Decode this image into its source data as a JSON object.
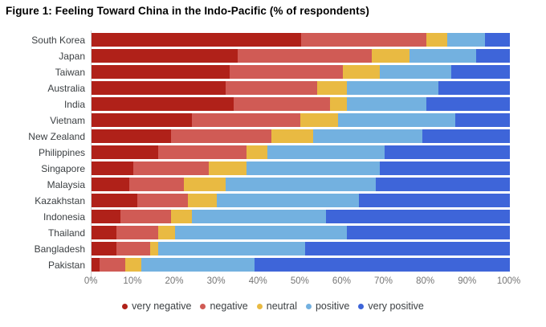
{
  "title": "Figure 1: Feeling Toward China in the Indo-Pacific (% of respondents)",
  "chart_data": {
    "type": "bar",
    "subtype": "horizontal_stacked_100",
    "title": "Figure 1: Feeling Toward China in the Indo-Pacific (% of respondents)",
    "categories": [
      "South Korea",
      "Japan",
      "Taiwan",
      "Australia",
      "India",
      "Vietnam",
      "New Zealand",
      "Philippines",
      "Singapore",
      "Malaysia",
      "Kazakhstan",
      "Indonesia",
      "Thailand",
      "Bangladesh",
      "Pakistan"
    ],
    "series": [
      {
        "name": "very negative",
        "color": "#b02119",
        "values": [
          50,
          35,
          33,
          32,
          34,
          24,
          19,
          16,
          10,
          9,
          11,
          7,
          6,
          6,
          2
        ]
      },
      {
        "name": "negative",
        "color": "#d05b55",
        "values": [
          30,
          32,
          27,
          22,
          23,
          26,
          24,
          21,
          18,
          13,
          12,
          12,
          10,
          8,
          6
        ]
      },
      {
        "name": "neutral",
        "color": "#e9ba42",
        "values": [
          5,
          9,
          9,
          7,
          4,
          9,
          10,
          5,
          9,
          10,
          7,
          5,
          4,
          2,
          4
        ]
      },
      {
        "name": "positive",
        "color": "#73b1e0",
        "values": [
          9,
          16,
          17,
          22,
          19,
          28,
          26,
          28,
          32,
          36,
          34,
          32,
          41,
          35,
          27
        ]
      },
      {
        "name": "very positive",
        "color": "#3e65d9",
        "values": [
          6,
          8,
          14,
          17,
          20,
          13,
          21,
          30,
          31,
          32,
          36,
          44,
          39,
          49,
          61
        ]
      }
    ],
    "x_ticks": [
      "0%",
      "10%",
      "20%",
      "30%",
      "40%",
      "50%",
      "60%",
      "70%",
      "80%",
      "90%",
      "100%"
    ],
    "xlim": [
      0,
      100
    ],
    "xlabel": "",
    "ylabel": "",
    "grid": false,
    "legend_position": "bottom",
    "colors": {
      "title_text": "#000000",
      "category_text": "#3c4043",
      "axis_text": "#757575",
      "axis_line": "#d0d0d0",
      "background": "#ffffff"
    }
  }
}
